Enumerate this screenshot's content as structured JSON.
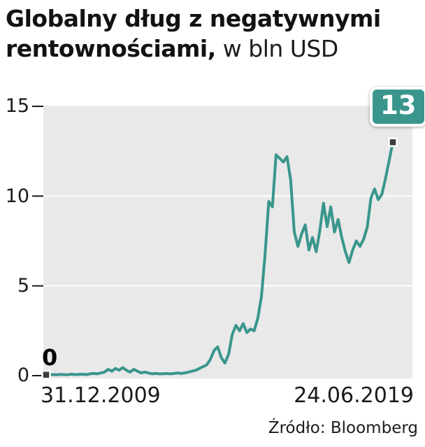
{
  "title": {
    "bold": "Globalny dług z negatywnymi rentownościami,",
    "regular": "w bln USD"
  },
  "source": "Źródło: Bloomberg",
  "chart_data": {
    "type": "line",
    "title": "Globalny dług z negatywnymi rentownościami, w bln USD",
    "unit": "bln USD",
    "ylim": [
      0,
      15
    ],
    "yticks": [
      "0",
      "5",
      "10",
      "15"
    ],
    "xticklabels": [
      "31.12.2009",
      "24.06.2019"
    ],
    "start_label": "0",
    "end_label": "13",
    "legend": "none",
    "grid": "horizontal-white",
    "line_color": "#3a968c",
    "plot_bg": "#e9e9e9",
    "marker_color": "#3d3d3d",
    "values": [
      0.05,
      0.05,
      0.06,
      0.05,
      0.07,
      0.06,
      0.05,
      0.08,
      0.06,
      0.07,
      0.08,
      0.06,
      0.1,
      0.12,
      0.1,
      0.15,
      0.2,
      0.35,
      0.25,
      0.4,
      0.3,
      0.45,
      0.3,
      0.2,
      0.35,
      0.25,
      0.15,
      0.2,
      0.15,
      0.1,
      0.12,
      0.1,
      0.1,
      0.12,
      0.1,
      0.12,
      0.15,
      0.12,
      0.15,
      0.2,
      0.25,
      0.3,
      0.4,
      0.5,
      0.6,
      0.9,
      1.4,
      1.6,
      1.0,
      0.7,
      1.2,
      2.3,
      2.8,
      2.5,
      2.9,
      2.4,
      2.6,
      2.5,
      3.2,
      4.4,
      6.8,
      9.7,
      9.4,
      12.3,
      12.1,
      11.9,
      12.2,
      10.9,
      8.0,
      7.2,
      7.9,
      8.4,
      7.0,
      7.7,
      6.9,
      8.1,
      9.6,
      8.3,
      9.4,
      8.0,
      8.7,
      7.7,
      6.9,
      6.3,
      7.0,
      7.5,
      7.2,
      7.6,
      8.3,
      9.9,
      10.4,
      9.8,
      10.1,
      11.0,
      12.0,
      13.0
    ]
  }
}
